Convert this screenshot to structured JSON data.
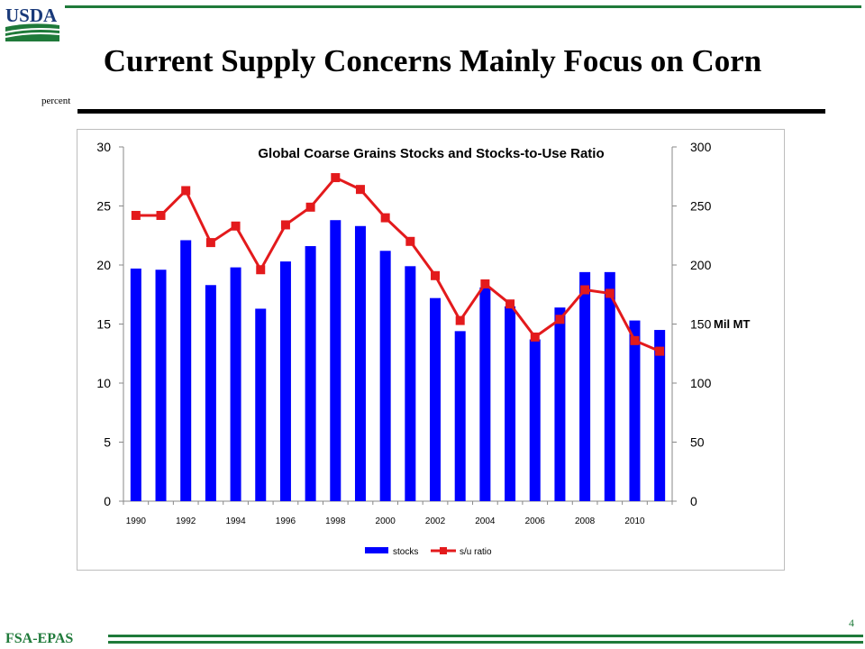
{
  "header": {
    "logo_text": "USDA",
    "title": "Current Supply Concerns Mainly Focus on Corn",
    "units_label": "percent"
  },
  "colors": {
    "brand_green": "#1f7a3a",
    "logo_blue": "#1a3a7a",
    "stocks_bar": "#0000ff",
    "ratio_line": "#e31a1c"
  },
  "chart_data": {
    "type": "bar",
    "title": "Global Coarse Grains Stocks and Stocks-to-Use Ratio",
    "x": [
      1990,
      1991,
      1992,
      1993,
      1994,
      1995,
      1996,
      1997,
      1998,
      1999,
      2000,
      2001,
      2002,
      2003,
      2004,
      2005,
      2006,
      2007,
      2008,
      2009,
      2010,
      2011
    ],
    "x_tick_labels": [
      "1990",
      "1992",
      "1994",
      "1996",
      "1998",
      "2000",
      "2002",
      "2004",
      "2006",
      "2008",
      "2010"
    ],
    "y_left": {
      "range": [
        0,
        30
      ],
      "ticks": [
        "0",
        "5",
        "10",
        "15",
        "20",
        "25",
        "30"
      ],
      "label": ""
    },
    "y_right": {
      "range": [
        0,
        300
      ],
      "ticks": [
        "0",
        "50",
        "100",
        "150",
        "200",
        "250",
        "300"
      ],
      "label": "Mil MT"
    },
    "series": [
      {
        "name": "stocks",
        "type": "bar",
        "axis": "right",
        "values": [
          197,
          196,
          221,
          183,
          198,
          163,
          203,
          216,
          238,
          233,
          212,
          199,
          172,
          144,
          181,
          165,
          137,
          164,
          194,
          194,
          153,
          145
        ]
      },
      {
        "name": "s/u ratio",
        "type": "line",
        "axis": "left",
        "values": [
          24.2,
          24.2,
          26.3,
          21.9,
          23.3,
          19.6,
          23.4,
          24.9,
          27.4,
          26.4,
          24.0,
          22.0,
          19.1,
          15.3,
          18.4,
          16.7,
          13.9,
          15.4,
          17.9,
          17.6,
          13.6,
          12.7
        ]
      }
    ],
    "grid": false,
    "legend": "bottom"
  },
  "footer": {
    "page_number": "4",
    "agency": "FSA-EPAS"
  }
}
